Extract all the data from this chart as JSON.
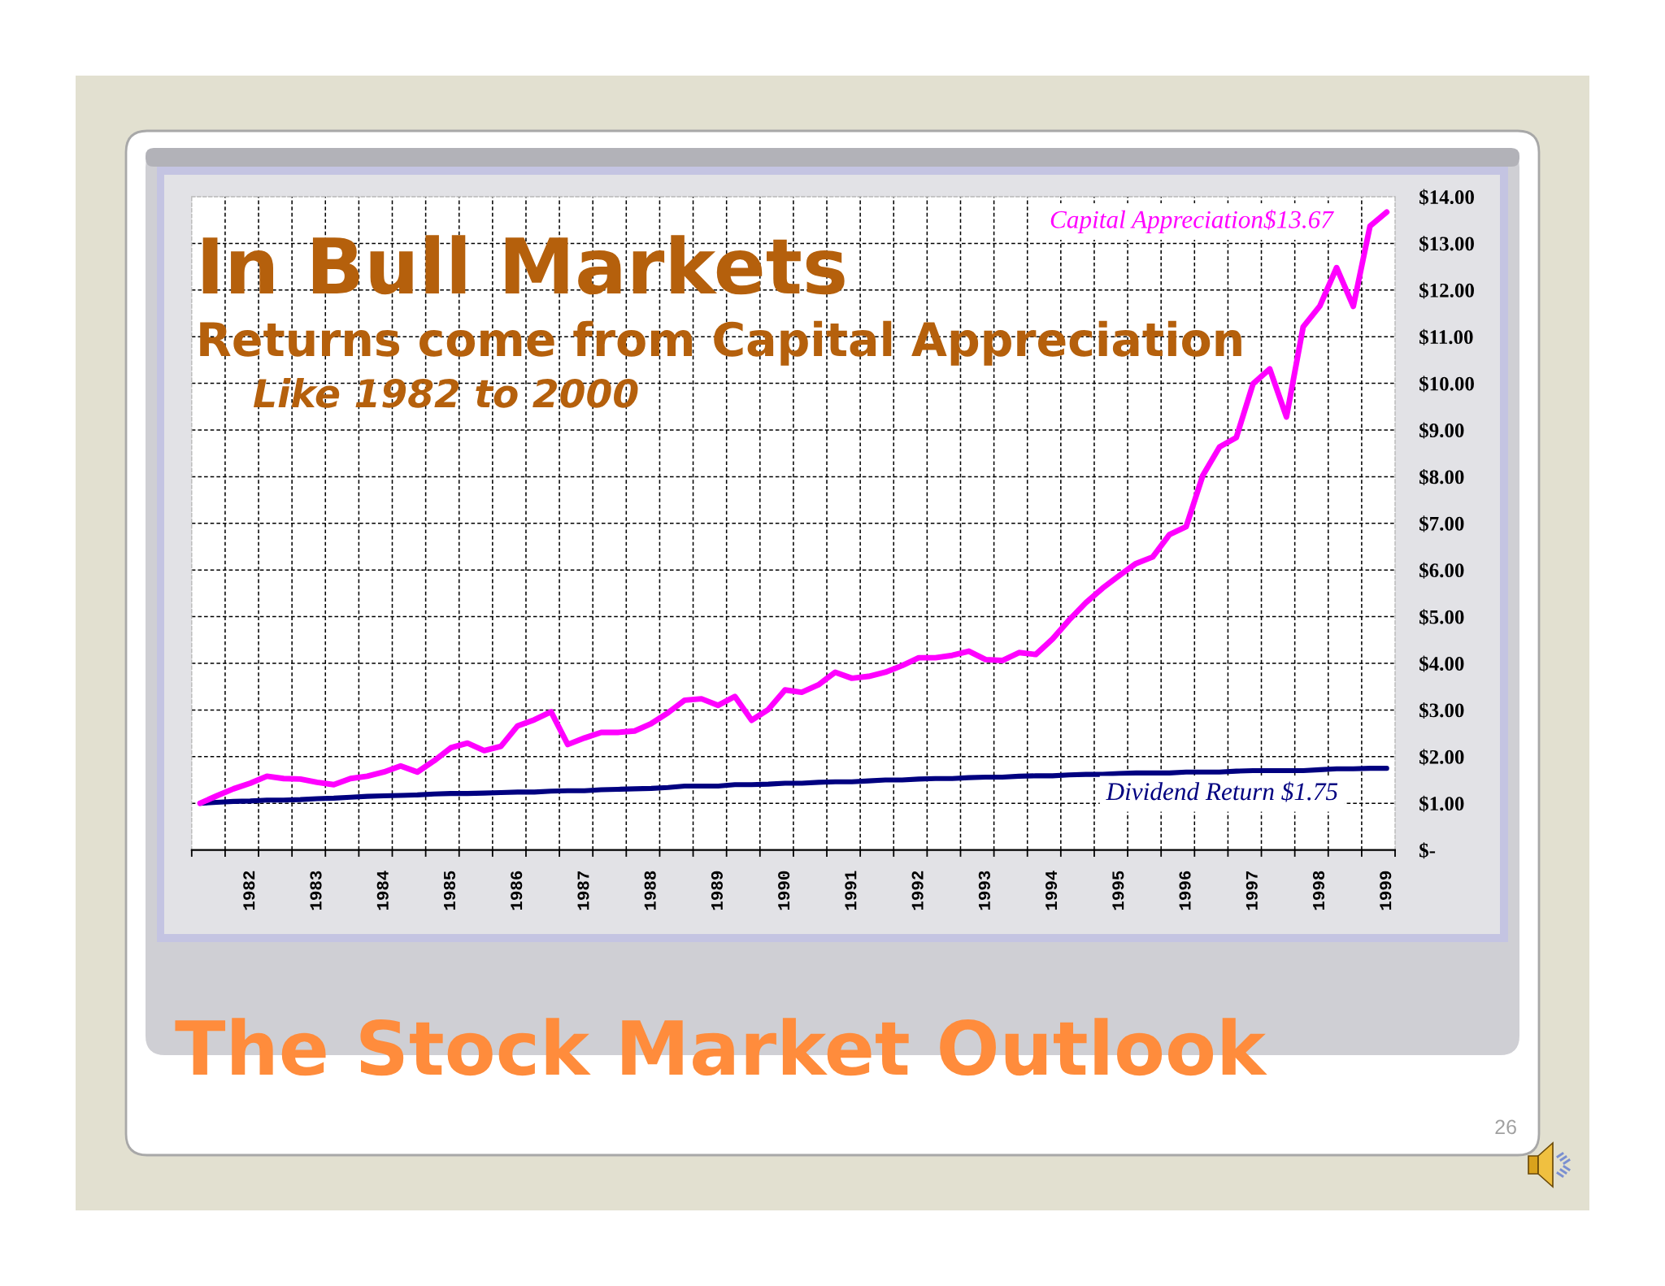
{
  "chart_data": {
    "type": "line",
    "title": "In Bull Markets",
    "subtitle": "Returns come from Capital Appreciation",
    "annotations": [
      "Like 1982 to 2000",
      "The Stock Market Outlook",
      "26"
    ],
    "categories": [
      null,
      null,
      null,
      "1982",
      null,
      null,
      null,
      "1983",
      null,
      null,
      null,
      "1984",
      null,
      null,
      null,
      "1985",
      null,
      null,
      null,
      "1986",
      null,
      null,
      null,
      "1987",
      null,
      null,
      null,
      "1988",
      null,
      null,
      null,
      "1989",
      null,
      null,
      null,
      "1990",
      null,
      null,
      null,
      "1991",
      null,
      null,
      null,
      "1992",
      null,
      null,
      null,
      "1993",
      null,
      null,
      null,
      "1994",
      null,
      null,
      null,
      "1995",
      null,
      null,
      null,
      "1996",
      null,
      null,
      null,
      "1997",
      null,
      null,
      null,
      "1998",
      null,
      null,
      null,
      "1999"
    ],
    "series": [
      {
        "name": "Capital Appreciation$13.67",
        "color": "#ff00ff",
        "values": [
          1.0,
          1.16,
          1.31,
          1.43,
          1.58,
          1.53,
          1.52,
          1.45,
          1.4,
          1.53,
          1.58,
          1.67,
          1.8,
          1.67,
          1.91,
          2.19,
          2.29,
          2.13,
          2.22,
          2.66,
          2.79,
          2.96,
          2.26,
          2.4,
          2.52,
          2.52,
          2.55,
          2.71,
          2.94,
          3.21,
          3.24,
          3.1,
          3.29,
          2.78,
          3.01,
          3.43,
          3.38,
          3.54,
          3.81,
          3.68,
          3.72,
          3.81,
          3.95,
          4.12,
          4.12,
          4.17,
          4.26,
          4.08,
          4.06,
          4.23,
          4.19,
          4.52,
          4.93,
          5.3,
          5.61,
          5.88,
          6.14,
          6.28,
          6.76,
          6.93,
          8.03,
          8.64,
          8.84,
          9.99,
          10.31,
          9.28,
          11.21,
          11.66,
          12.48,
          11.65,
          13.37,
          13.67
        ]
      },
      {
        "name": "Dividend Return $1.75",
        "color": "#000080",
        "values": [
          1.0,
          1.02,
          1.04,
          1.05,
          1.07,
          1.07,
          1.08,
          1.1,
          1.11,
          1.13,
          1.15,
          1.16,
          1.17,
          1.18,
          1.2,
          1.21,
          1.21,
          1.22,
          1.23,
          1.24,
          1.24,
          1.26,
          1.27,
          1.27,
          1.29,
          1.3,
          1.31,
          1.32,
          1.34,
          1.37,
          1.37,
          1.37,
          1.4,
          1.4,
          1.41,
          1.43,
          1.43,
          1.45,
          1.46,
          1.46,
          1.48,
          1.5,
          1.5,
          1.52,
          1.53,
          1.53,
          1.55,
          1.56,
          1.56,
          1.58,
          1.59,
          1.59,
          1.61,
          1.62,
          1.62,
          1.64,
          1.65,
          1.65,
          1.65,
          1.67,
          1.67,
          1.67,
          1.69,
          1.7,
          1.7,
          1.7,
          1.7,
          1.72,
          1.74,
          1.74,
          1.75,
          1.75
        ]
      }
    ],
    "ylim": [
      0,
      14
    ],
    "yticks": [
      {
        "value": 0,
        "label": "$-"
      },
      {
        "value": 1,
        "label": "$1.00"
      },
      {
        "value": 2,
        "label": "$2.00"
      },
      {
        "value": 3,
        "label": "$3.00"
      },
      {
        "value": 4,
        "label": "$4.00"
      },
      {
        "value": 5,
        "label": "$5.00"
      },
      {
        "value": 6,
        "label": "$6.00"
      },
      {
        "value": 7,
        "label": "$7.00"
      },
      {
        "value": 8,
        "label": "$8.00"
      },
      {
        "value": 9,
        "label": "$9.00"
      },
      {
        "value": 10,
        "label": "$10.00"
      },
      {
        "value": 11,
        "label": "$11.00"
      },
      {
        "value": 12,
        "label": "$12.00"
      },
      {
        "value": 13,
        "label": "$13.00"
      },
      {
        "value": 14,
        "label": "$14.00"
      }
    ],
    "grid": true
  }
}
